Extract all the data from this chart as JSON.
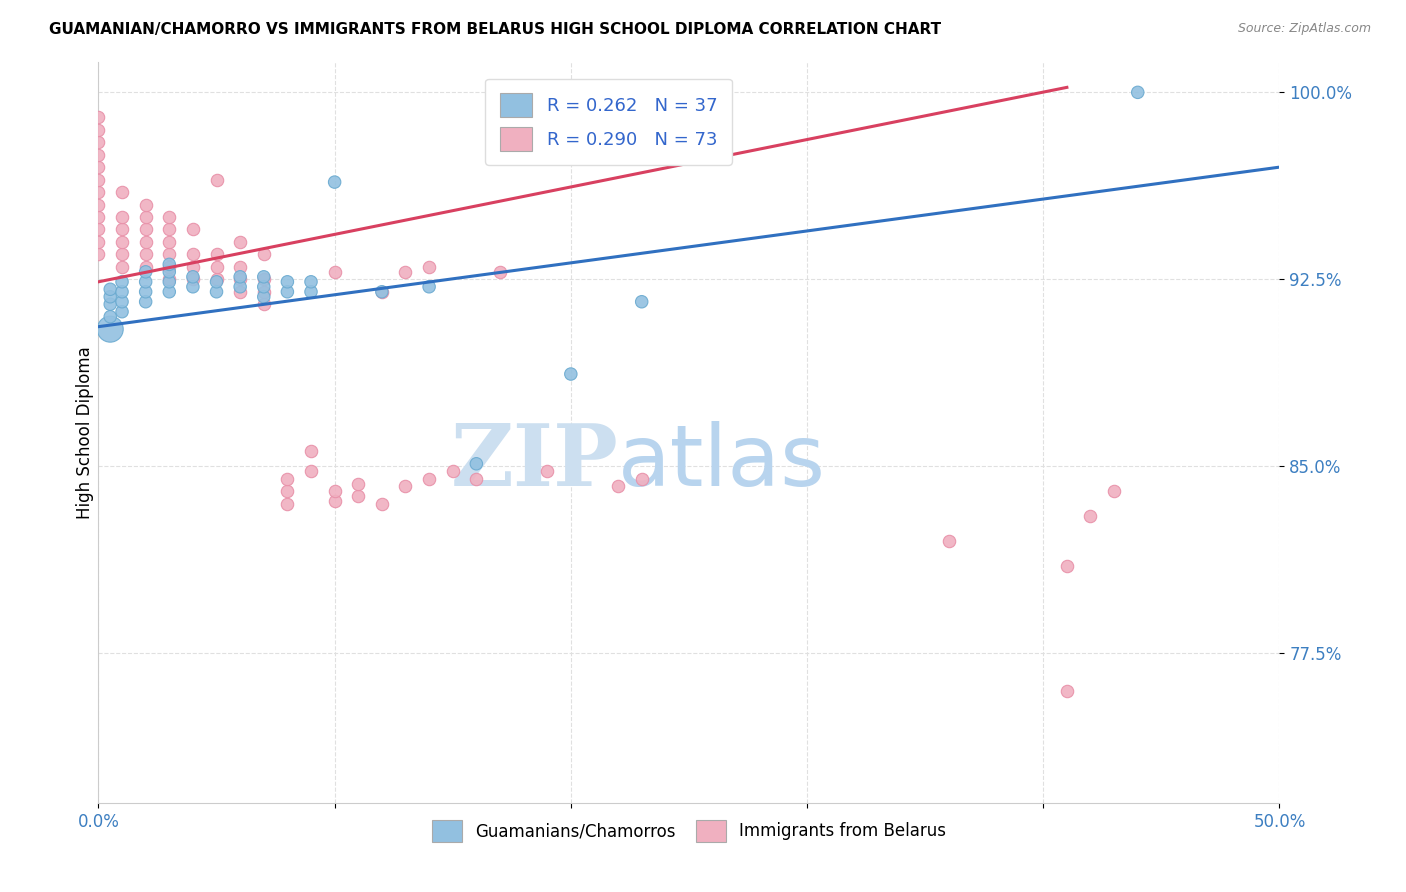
{
  "title": "GUAMANIAN/CHAMORRO VS IMMIGRANTS FROM BELARUS HIGH SCHOOL DIPLOMA CORRELATION CHART",
  "source": "Source: ZipAtlas.com",
  "ylabel": "High School Diploma",
  "xlim": [
    0.0,
    0.5
  ],
  "ylim": [
    0.715,
    1.012
  ],
  "xticks": [
    0.0,
    0.1,
    0.2,
    0.3,
    0.4,
    0.5
  ],
  "xticklabels": [
    "0.0%",
    "",
    "",
    "",
    "",
    "50.0%"
  ],
  "yticks": [
    0.775,
    0.85,
    0.925,
    1.0
  ],
  "yticklabels": [
    "77.5%",
    "85.0%",
    "92.5%",
    "100.0%"
  ],
  "legend_blue_r": "0.262",
  "legend_blue_n": "37",
  "legend_pink_r": "0.290",
  "legend_pink_n": "73",
  "legend_xlabel_blue": "Guamanians/Chamorros",
  "legend_xlabel_pink": "Immigrants from Belarus",
  "blue_color": "#92c0e0",
  "pink_color": "#f0b0c0",
  "blue_edge_color": "#6aaad0",
  "pink_edge_color": "#e890a8",
  "blue_line_color": "#3070c0",
  "pink_line_color": "#d84060",
  "watermark_zip": "ZIP",
  "watermark_atlas": "atlas",
  "watermark_color": "#ccdff0",
  "grid_color": "#e0e0e0",
  "blue_scatter_x": [
    0.005,
    0.005,
    0.005,
    0.005,
    0.005,
    0.01,
    0.01,
    0.01,
    0.01,
    0.02,
    0.02,
    0.02,
    0.02,
    0.03,
    0.03,
    0.03,
    0.03,
    0.04,
    0.04,
    0.05,
    0.05,
    0.06,
    0.06,
    0.07,
    0.07,
    0.07,
    0.08,
    0.08,
    0.09,
    0.09,
    0.1,
    0.12,
    0.14,
    0.16,
    0.2,
    0.23,
    0.44
  ],
  "blue_scatter_y": [
    0.905,
    0.91,
    0.915,
    0.918,
    0.921,
    0.912,
    0.916,
    0.92,
    0.924,
    0.916,
    0.92,
    0.924,
    0.928,
    0.92,
    0.924,
    0.928,
    0.931,
    0.922,
    0.926,
    0.92,
    0.924,
    0.922,
    0.926,
    0.918,
    0.922,
    0.926,
    0.92,
    0.924,
    0.92,
    0.924,
    0.964,
    0.92,
    0.922,
    0.851,
    0.887,
    0.916,
    1.0
  ],
  "blue_scatter_sizes": [
    350,
    80,
    80,
    80,
    80,
    80,
    80,
    80,
    80,
    80,
    80,
    80,
    80,
    80,
    80,
    80,
    80,
    80,
    80,
    80,
    80,
    80,
    80,
    80,
    80,
    80,
    80,
    80,
    80,
    80,
    80,
    80,
    80,
    80,
    80,
    80,
    80
  ],
  "pink_scatter_x": [
    0.0,
    0.0,
    0.0,
    0.0,
    0.0,
    0.0,
    0.0,
    0.0,
    0.0,
    0.0,
    0.0,
    0.0,
    0.01,
    0.01,
    0.01,
    0.01,
    0.01,
    0.01,
    0.02,
    0.02,
    0.02,
    0.02,
    0.02,
    0.02,
    0.03,
    0.03,
    0.03,
    0.03,
    0.03,
    0.03,
    0.04,
    0.04,
    0.04,
    0.04,
    0.05,
    0.05,
    0.05,
    0.05,
    0.06,
    0.06,
    0.06,
    0.06,
    0.07,
    0.07,
    0.07,
    0.07,
    0.08,
    0.08,
    0.08,
    0.09,
    0.09,
    0.1,
    0.1,
    0.1,
    0.11,
    0.11,
    0.12,
    0.12,
    0.13,
    0.13,
    0.14,
    0.14,
    0.15,
    0.16,
    0.17,
    0.19,
    0.22,
    0.23,
    0.36,
    0.41,
    0.41,
    0.42,
    0.43
  ],
  "pink_scatter_y": [
    0.935,
    0.94,
    0.945,
    0.95,
    0.955,
    0.96,
    0.965,
    0.97,
    0.975,
    0.98,
    0.985,
    0.99,
    0.93,
    0.935,
    0.94,
    0.945,
    0.95,
    0.96,
    0.93,
    0.935,
    0.94,
    0.945,
    0.95,
    0.955,
    0.925,
    0.93,
    0.935,
    0.94,
    0.945,
    0.95,
    0.925,
    0.93,
    0.935,
    0.945,
    0.925,
    0.93,
    0.935,
    0.965,
    0.92,
    0.925,
    0.93,
    0.94,
    0.915,
    0.92,
    0.925,
    0.935,
    0.835,
    0.84,
    0.845,
    0.848,
    0.856,
    0.836,
    0.84,
    0.928,
    0.838,
    0.843,
    0.835,
    0.92,
    0.842,
    0.928,
    0.845,
    0.93,
    0.848,
    0.845,
    0.928,
    0.848,
    0.842,
    0.845,
    0.82,
    0.76,
    0.81,
    0.83,
    0.84
  ],
  "blue_trendline_x": [
    0.0,
    0.5
  ],
  "blue_trendline_y": [
    0.906,
    0.97
  ],
  "pink_trendline_x": [
    0.0,
    0.41
  ],
  "pink_trendline_y": [
    0.924,
    1.002
  ]
}
